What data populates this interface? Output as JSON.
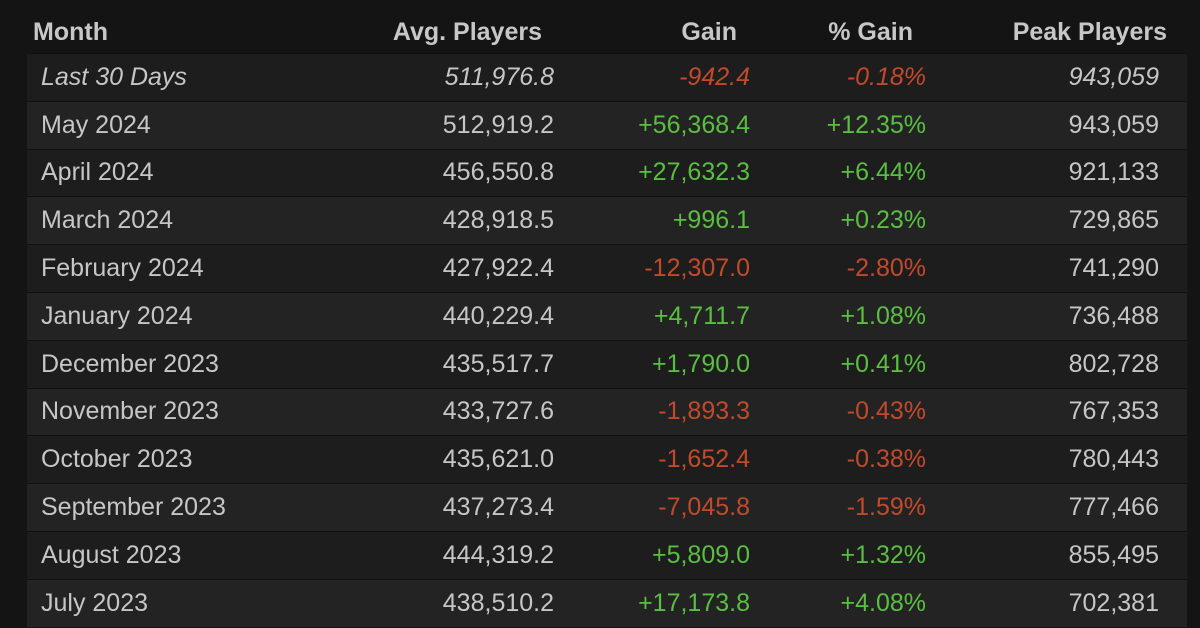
{
  "colors": {
    "background": "#141414",
    "text": "#c6c6c6",
    "positive": "#59bf40",
    "negative": "#c24a2a"
  },
  "headers": {
    "month": "Month",
    "avg_players": "Avg. Players",
    "gain": "Gain",
    "pct_gain": "% Gain",
    "peak_players": "Peak Players"
  },
  "rows": [
    {
      "month": "Last 30 Days",
      "avg": "511,976.8",
      "gain": "-942.4",
      "pct": "-0.18%",
      "peak": "943,059",
      "trend": "neg",
      "italic": true
    },
    {
      "month": "May 2024",
      "avg": "512,919.2",
      "gain": "+56,368.4",
      "pct": "+12.35%",
      "peak": "943,059",
      "trend": "pos"
    },
    {
      "month": "April 2024",
      "avg": "456,550.8",
      "gain": "+27,632.3",
      "pct": "+6.44%",
      "peak": "921,133",
      "trend": "pos"
    },
    {
      "month": "March 2024",
      "avg": "428,918.5",
      "gain": "+996.1",
      "pct": "+0.23%",
      "peak": "729,865",
      "trend": "pos"
    },
    {
      "month": "February 2024",
      "avg": "427,922.4",
      "gain": "-12,307.0",
      "pct": "-2.80%",
      "peak": "741,290",
      "trend": "neg"
    },
    {
      "month": "January 2024",
      "avg": "440,229.4",
      "gain": "+4,711.7",
      "pct": "+1.08%",
      "peak": "736,488",
      "trend": "pos"
    },
    {
      "month": "December 2023",
      "avg": "435,517.7",
      "gain": "+1,790.0",
      "pct": "+0.41%",
      "peak": "802,728",
      "trend": "pos"
    },
    {
      "month": "November 2023",
      "avg": "433,727.6",
      "gain": "-1,893.3",
      "pct": "-0.43%",
      "peak": "767,353",
      "trend": "neg"
    },
    {
      "month": "October 2023",
      "avg": "435,621.0",
      "gain": "-1,652.4",
      "pct": "-0.38%",
      "peak": "780,443",
      "trend": "neg"
    },
    {
      "month": "September 2023",
      "avg": "437,273.4",
      "gain": "-7,045.8",
      "pct": "-1.59%",
      "peak": "777,466",
      "trend": "neg"
    },
    {
      "month": "August 2023",
      "avg": "444,319.2",
      "gain": "+5,809.0",
      "pct": "+1.32%",
      "peak": "855,495",
      "trend": "pos"
    },
    {
      "month": "July 2023",
      "avg": "438,510.2",
      "gain": "+17,173.8",
      "pct": "+4.08%",
      "peak": "702,381",
      "trend": "pos"
    }
  ]
}
